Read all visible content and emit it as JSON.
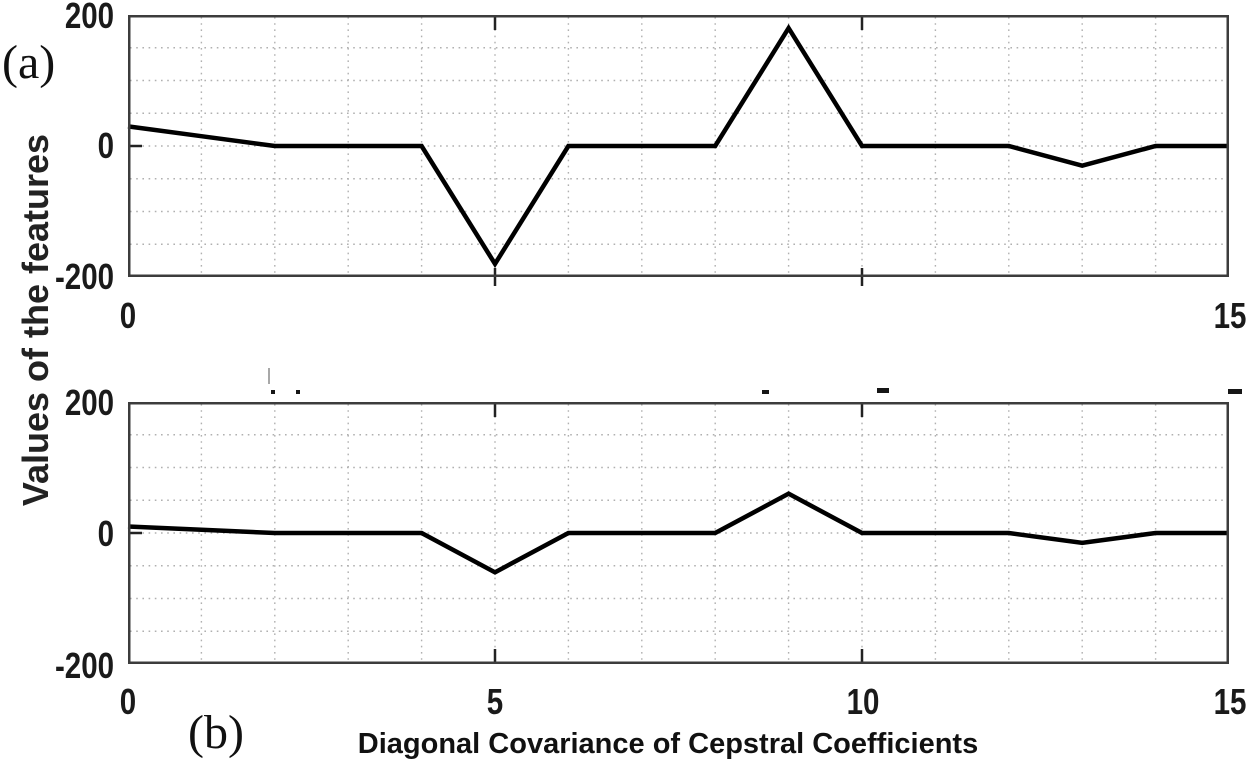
{
  "figure": {
    "panel_a_label": "(a)",
    "panel_b_label": "(b)",
    "y_axis_label": "Values of the features",
    "x_axis_label": "Diagonal Covariance of Cepstral Coefficients"
  },
  "chart_data": [
    {
      "type": "line",
      "panel": "a",
      "x": [
        0,
        1,
        2,
        3,
        4,
        5,
        6,
        7,
        8,
        9,
        10,
        11,
        12,
        13,
        14,
        15
      ],
      "values": [
        30,
        15,
        0,
        0,
        0,
        -180,
        0,
        0,
        0,
        180,
        0,
        0,
        0,
        -30,
        0,
        0
      ],
      "xlim": [
        0,
        15
      ],
      "ylim": [
        -200,
        200
      ],
      "xticks": [
        0,
        5,
        10,
        15
      ],
      "xtick_labels": [
        "0",
        "15"
      ],
      "xtick_label_positions": [
        0,
        15
      ],
      "yticks": [
        200,
        0,
        -200
      ],
      "ytick_labels": [
        "200",
        "0",
        "-200"
      ],
      "xgrid_minor_step": 1,
      "ygrid_minor_step": 50,
      "grid": "dotted",
      "line_color": "#000000",
      "legend_position": "none"
    },
    {
      "type": "line",
      "panel": "b",
      "x": [
        0,
        1,
        2,
        3,
        4,
        5,
        6,
        7,
        8,
        9,
        10,
        11,
        12,
        13,
        14,
        15
      ],
      "values": [
        10,
        5,
        0,
        0,
        0,
        -60,
        0,
        0,
        0,
        60,
        0,
        0,
        0,
        -15,
        0,
        0
      ],
      "xlim": [
        0,
        15
      ],
      "ylim": [
        -200,
        200
      ],
      "xticks": [
        0,
        5,
        10,
        15
      ],
      "xtick_labels": [
        "0",
        "5",
        "10",
        "15"
      ],
      "xtick_label_positions": [
        0,
        5,
        10,
        15
      ],
      "yticks": [
        200,
        0,
        -200
      ],
      "ytick_labels": [
        "200",
        "0",
        "-200"
      ],
      "xgrid_minor_step": 1,
      "ygrid_minor_step": 50,
      "grid": "dotted",
      "line_color": "#000000",
      "legend_position": "none"
    }
  ]
}
